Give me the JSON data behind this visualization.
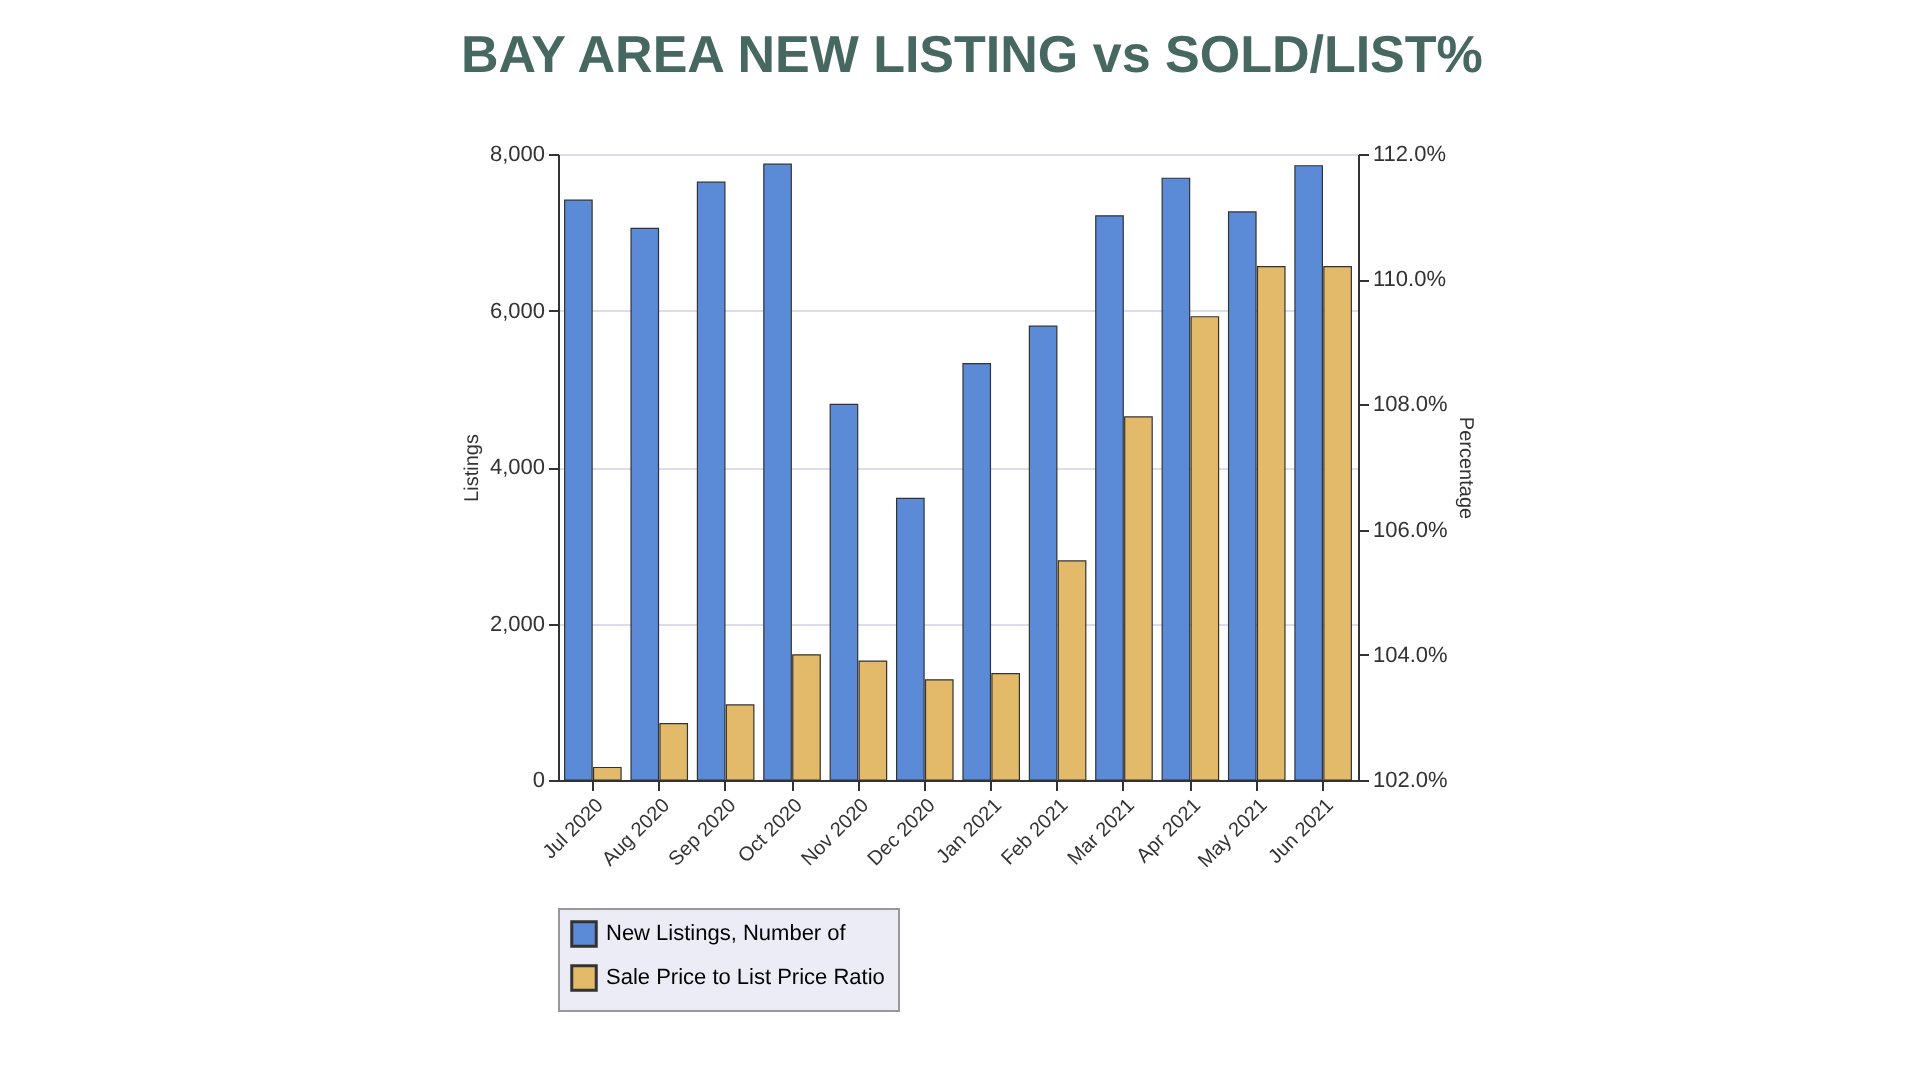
{
  "chart_data": {
    "type": "bar",
    "title": "BAY AREA NEW LISTING vs SOLD/LIST%",
    "categories": [
      "Jul 2020",
      "Aug 2020",
      "Sep 2020",
      "Oct 2020",
      "Nov 2020",
      "Dec 2020",
      "Jan 2021",
      "Feb 2021",
      "Mar 2021",
      "Apr 2021",
      "May 2021",
      "Jun 2021"
    ],
    "series": [
      {
        "name": "New Listings, Number of",
        "color": "#5b8ad6",
        "values": [
          7410,
          7050,
          7640,
          7870,
          4800,
          3600,
          5320,
          5800,
          7210,
          7690,
          7260,
          7850
        ]
      },
      {
        "name": "Sale Price to List Price Ratio",
        "color": "#e3b96a",
        "axis": "y2",
        "values": [
          102.2,
          102.9,
          103.2,
          104.0,
          103.9,
          103.6,
          103.7,
          105.5,
          107.8,
          109.4,
          110.2,
          110.2
        ]
      }
    ],
    "ylabel": "Listings",
    "y2label": "Percentage",
    "ylim": [
      0,
      8000
    ],
    "yticks": [
      {
        "value": 0,
        "label": "0"
      },
      {
        "value": 2000,
        "label": "2,000"
      },
      {
        "value": 4000,
        "label": "4,000"
      },
      {
        "value": 6000,
        "label": "6,000"
      },
      {
        "value": 8000,
        "label": "8,000"
      }
    ],
    "y2lim": [
      102,
      112
    ],
    "y2ticks": [
      {
        "value": 102,
        "label": "102.0%"
      },
      {
        "value": 104,
        "label": "104.0%"
      },
      {
        "value": 106,
        "label": "106.0%"
      },
      {
        "value": 108,
        "label": "108.0%"
      },
      {
        "value": 110,
        "label": "110.0%"
      },
      {
        "value": 112,
        "label": "112.0%"
      }
    ],
    "grid": "y",
    "legend": "bottom"
  }
}
